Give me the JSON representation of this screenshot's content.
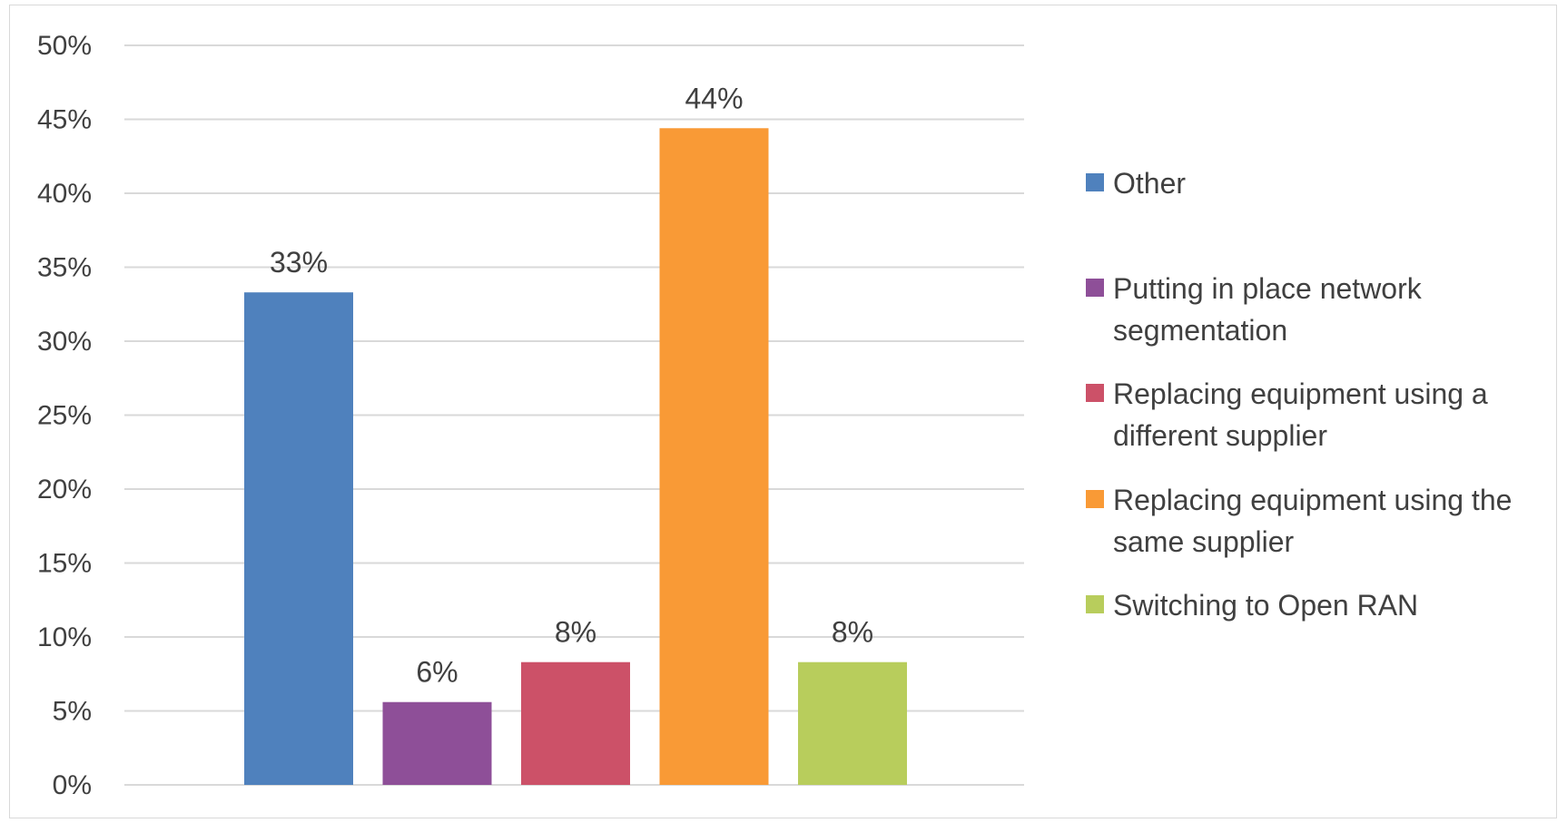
{
  "chart_data": {
    "type": "bar",
    "title": "",
    "xlabel": "",
    "ylabel": "",
    "ylim": [
      0,
      50
    ],
    "yticks": [
      "0%",
      "5%",
      "10%",
      "15%",
      "20%",
      "25%",
      "30%",
      "35%",
      "40%",
      "45%",
      "50%"
    ],
    "grid": true,
    "legend_position": "right",
    "categories": [
      "Other",
      "Putting in place network segmentation",
      "Replacing equipment using a different supplier",
      "Replacing equipment using the same supplier",
      "Switching to Open RAN"
    ],
    "values": [
      33.3,
      5.6,
      8.3,
      44.4,
      8.3
    ],
    "data_labels": [
      "33%",
      "6%",
      "8%",
      "44%",
      "8%"
    ],
    "colors": [
      "#4f81bd",
      "#8e4f98",
      "#cc5168",
      "#f99a36",
      "#b8cd5c"
    ],
    "legend": [
      {
        "lines": [
          "Other"
        ]
      },
      {
        "lines": [
          "Putting in place network",
          "segmentation"
        ]
      },
      {
        "lines": [
          "Replacing equipment using a",
          "different supplier"
        ]
      },
      {
        "lines": [
          "Replacing equipment using the",
          "same supplier"
        ]
      },
      {
        "lines": [
          "Switching to Open RAN"
        ]
      }
    ]
  }
}
